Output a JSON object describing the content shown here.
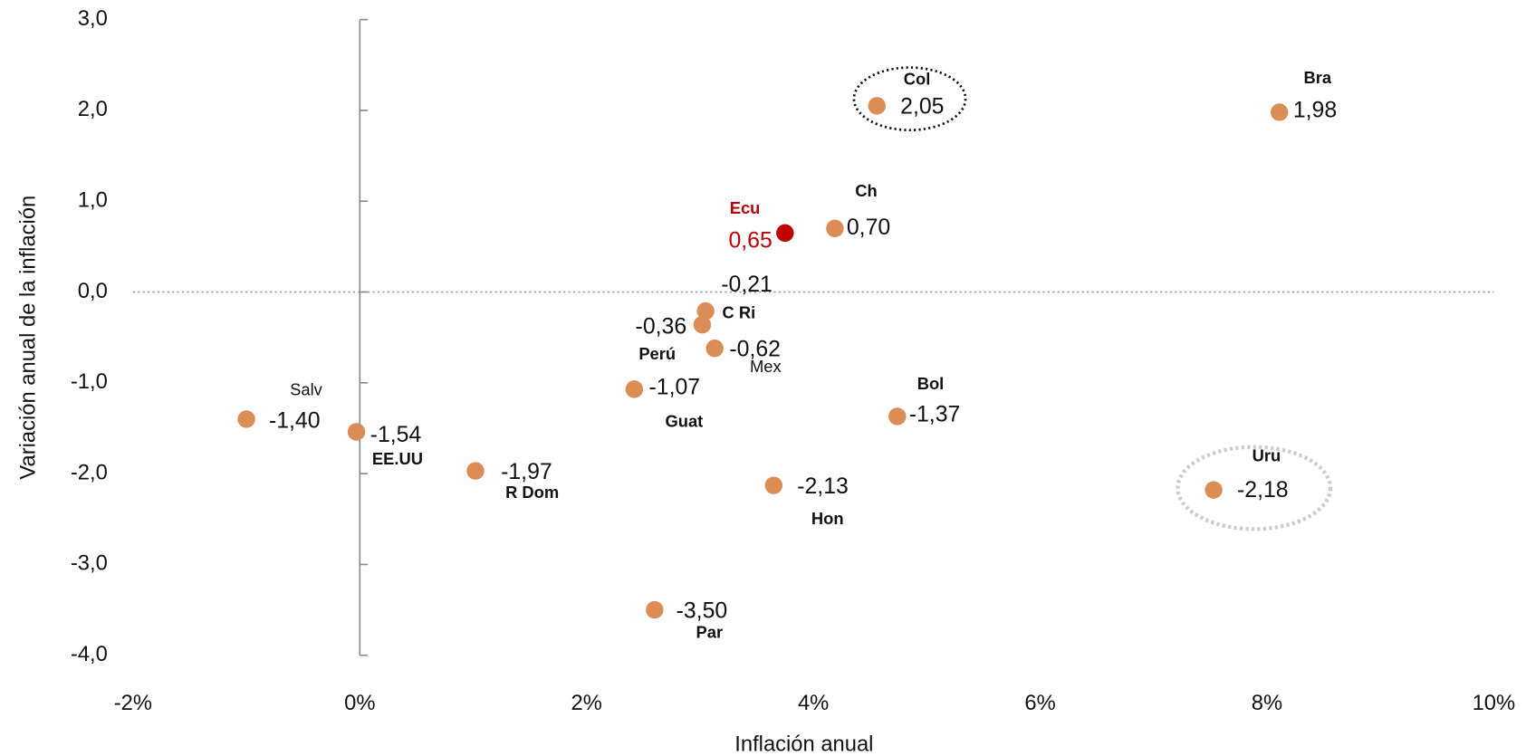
{
  "chart_data": {
    "type": "scatter",
    "x_label": "Inflación anual",
    "y_label": "Variación anual de la inflación",
    "xlim": [
      -2,
      10
    ],
    "ylim": [
      -4,
      3
    ],
    "xticks": [
      {
        "value": -2,
        "label": "-2%"
      },
      {
        "value": 0,
        "label": "0%"
      },
      {
        "value": 2,
        "label": "2%"
      },
      {
        "value": 4,
        "label": "4%"
      },
      {
        "value": 6,
        "label": "6%"
      },
      {
        "value": 8,
        "label": "8%"
      },
      {
        "value": 10,
        "label": "10%"
      }
    ],
    "yticks": [
      {
        "value": 3,
        "label": "3,0"
      },
      {
        "value": 2,
        "label": "2,0"
      },
      {
        "value": 1,
        "label": "1,0"
      },
      {
        "value": 0,
        "label": "0,0"
      },
      {
        "value": -1,
        "label": "-1,0"
      },
      {
        "value": -2,
        "label": "-2,0"
      },
      {
        "value": -3,
        "label": "-3,0"
      },
      {
        "value": -4,
        "label": "-4,0"
      }
    ],
    "labels": [
      "Col",
      "Bra",
      "Ch",
      "Ecu",
      "C Ri",
      "Perú",
      "Mex",
      "Guat",
      "Bol",
      "Salv",
      "EE.UU",
      "R Dom",
      "Hon",
      "Uru",
      "Par"
    ],
    "x": [
      4.56,
      8.11,
      4.19,
      3.75,
      3.05,
      3.02,
      3.13,
      2.42,
      4.74,
      -1.0,
      -0.03,
      1.02,
      3.65,
      7.53,
      2.6
    ],
    "values": [
      2.05,
      1.98,
      0.7,
      0.65,
      -0.21,
      -0.36,
      -0.62,
      -1.07,
      -1.37,
      -1.4,
      -1.54,
      -1.97,
      -2.13,
      -2.18,
      -3.5
    ],
    "value_labels": [
      "2,05",
      "1,98",
      "0,70",
      "0,65",
      "-0,21",
      "-0,36",
      "-0,62",
      "-1,07",
      "-1,37",
      "-1,40",
      "-1,54",
      "-1,97",
      "-2,13",
      "-2,18",
      "-3,50"
    ],
    "colors": [
      "#dc8c55",
      "#dc8c55",
      "#dc8c55",
      "#c00000",
      "#dc8c55",
      "#dc8c55",
      "#dc8c55",
      "#dc8c55",
      "#dc8c55",
      "#dc8c55",
      "#dc8c55",
      "#dc8c55",
      "#dc8c55",
      "#dc8c55",
      "#dc8c55"
    ]
  }
}
